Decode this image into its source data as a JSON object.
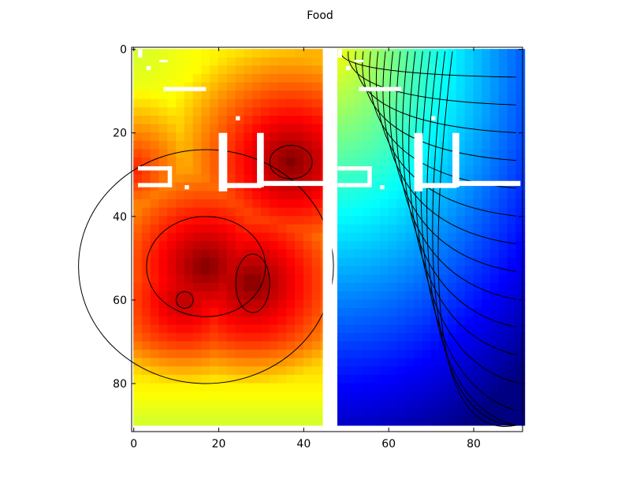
{
  "chart_data": {
    "type": "heatmap",
    "title": "Food",
    "xlabel": "",
    "ylabel": "",
    "xlim": [
      -0.5,
      91.5
    ],
    "ylim": [
      91.5,
      -0.5
    ],
    "y_inverted": true,
    "x_ticks": [
      0,
      20,
      40,
      60,
      80
    ],
    "y_ticks": [
      0,
      20,
      40,
      60,
      80
    ],
    "x_tick_labels": [
      "0",
      "20",
      "40",
      "60",
      "80"
    ],
    "y_tick_labels": [
      "0",
      "20",
      "40",
      "60",
      "80"
    ],
    "grid": false,
    "colormap": "jet",
    "contours": true,
    "contour_color": "#000000",
    "left_panel": {
      "x_range": [
        0,
        45
      ],
      "description_level": "high",
      "peaks": [
        {
          "x": 37,
          "y": 27,
          "level": 1.0
        },
        {
          "x": 17,
          "y": 30,
          "level": 0.72
        },
        {
          "x": 0,
          "y": 29,
          "level": 0.85
        },
        {
          "x": 17,
          "y": 52,
          "level": 1.0
        },
        {
          "x": 28,
          "y": 56,
          "level": 1.0
        },
        {
          "x": 12,
          "y": 60,
          "level": 0.95
        },
        {
          "x": 42,
          "y": 14,
          "level": 0.8
        }
      ],
      "low_corner": {
        "x": 0,
        "y": 0,
        "level": 0.55
      }
    },
    "right_panel": {
      "x_range": [
        47,
        90
      ],
      "gradient": "decreasing toward bottom-right",
      "max_corner": {
        "x": 47,
        "y": 0,
        "level": 0.62
      },
      "min_corner": {
        "x": 90,
        "y": 90,
        "level": 0.0
      }
    },
    "walls_color": "#ffffff"
  }
}
